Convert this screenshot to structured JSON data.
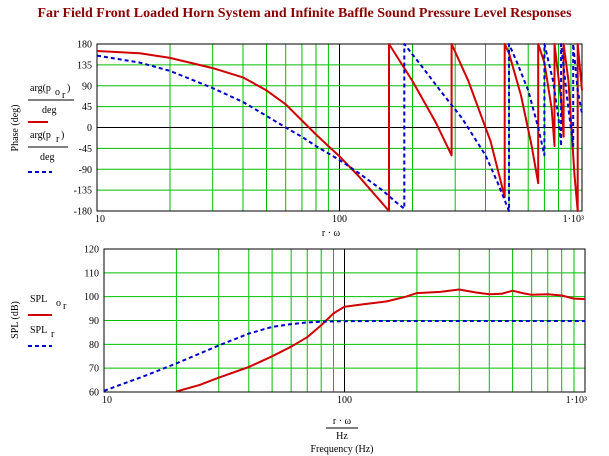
{
  "title": "Far Field Front Loaded Horn System and Infinite Baffle Sound Pressure Level Responses",
  "colors": {
    "title": "#8b0000",
    "grid": "#00c000",
    "frame": "#000000",
    "horn": "#d00000",
    "baffle": "#0000cc"
  },
  "chart_data": [
    {
      "type": "line",
      "xscale": "log",
      "xlim": [
        10,
        1000
      ],
      "ylim": [
        -180,
        180
      ],
      "ylabel": "Phase (deg)",
      "xlabel": "r · ω",
      "xticks": [
        "10",
        "100",
        "1·10³"
      ],
      "yticks": [
        "180",
        "135",
        "90",
        "45",
        "0",
        "-45",
        "-90",
        "-135",
        "-180"
      ],
      "grid": true,
      "legend": [
        {
          "text": "arg(p o_r) / deg",
          "style": "solid",
          "color": "#d00000"
        },
        {
          "text": "arg(p_r) / deg",
          "style": "dashed",
          "color": "#0000cc"
        }
      ],
      "series": [
        {
          "style": "solid",
          "color": "#d00000",
          "x": [
            10,
            15,
            20,
            30,
            40,
            50,
            60,
            70,
            80,
            90,
            100,
            120,
            140,
            160,
            160,
            200,
            250,
            290,
            290,
            340,
            420,
            480,
            480,
            500,
            560,
            620,
            660,
            660,
            700,
            750,
            770,
            770,
            820,
            840,
            840,
            880,
            930,
            960,
            960,
            1000
          ],
          "y": [
            165,
            160,
            150,
            128,
            108,
            80,
            50,
            15,
            -15,
            -40,
            -62,
            -105,
            -145,
            -180,
            180,
            100,
            10,
            -60,
            180,
            100,
            -30,
            -150,
            180,
            160,
            70,
            -40,
            -120,
            180,
            140,
            40,
            -40,
            180,
            60,
            -20,
            180,
            100,
            -100,
            -180,
            180,
            80
          ]
        },
        {
          "style": "dashed",
          "color": "#0000cc",
          "x": [
            10,
            15,
            20,
            30,
            40,
            50,
            60,
            70,
            80,
            100,
            120,
            150,
            170,
            185,
            185,
            220,
            260,
            320,
            400,
            450,
            500,
            500,
            540,
            600,
            660,
            700,
            700,
            760,
            800,
            820,
            820,
            870,
            920,
            920,
            960,
            1000
          ],
          "y": [
            155,
            140,
            122,
            85,
            55,
            25,
            0,
            -20,
            -40,
            -70,
            -98,
            -135,
            -160,
            -175,
            180,
            130,
            80,
            20,
            -60,
            -120,
            -180,
            180,
            140,
            80,
            0,
            -60,
            180,
            100,
            20,
            -40,
            180,
            60,
            -40,
            180,
            80,
            30
          ]
        }
      ]
    },
    {
      "type": "line",
      "xscale": "log",
      "xlim": [
        10,
        1000
      ],
      "ylim": [
        60,
        120
      ],
      "ylabel": "SPL (dB)",
      "xlabel": "Frequency (Hz)",
      "xlabel_upper": "r · ω",
      "xlabel_mid": "Hz",
      "xticks": [
        "10",
        "100",
        "1·10³"
      ],
      "yticks": [
        "120",
        "110",
        "100",
        "90",
        "80",
        "70",
        "60"
      ],
      "grid": true,
      "legend": [
        {
          "text": "SPL o_r",
          "style": "solid",
          "color": "#d00000"
        },
        {
          "text": "SPL_r",
          "style": "dashed",
          "color": "#0000cc"
        }
      ],
      "series": [
        {
          "style": "solid",
          "color": "#d00000",
          "x": [
            20,
            25,
            30,
            40,
            50,
            60,
            70,
            80,
            90,
            100,
            120,
            150,
            180,
            200,
            250,
            300,
            350,
            400,
            450,
            500,
            550,
            600,
            700,
            800,
            900,
            1000
          ],
          "y": [
            60.2,
            63,
            66,
            70.5,
            75,
            79,
            83,
            88,
            93,
            95.8,
            96.8,
            98,
            100,
            101.5,
            102,
            103,
            101.8,
            101,
            101.2,
            102.5,
            101.5,
            100.8,
            101,
            100.5,
            99.2,
            99
          ]
        },
        {
          "style": "dashed",
          "color": "#0000cc",
          "x": [
            10,
            15,
            20,
            30,
            40,
            50,
            60,
            70,
            80,
            100,
            150,
            200,
            300,
            500,
            700,
            1000
          ],
          "y": [
            60.5,
            67,
            72,
            79.5,
            84.5,
            87.3,
            88.5,
            89.2,
            89.5,
            89.7,
            89.8,
            89.8,
            89.8,
            89.8,
            89.8,
            89.8
          ]
        }
      ]
    }
  ]
}
